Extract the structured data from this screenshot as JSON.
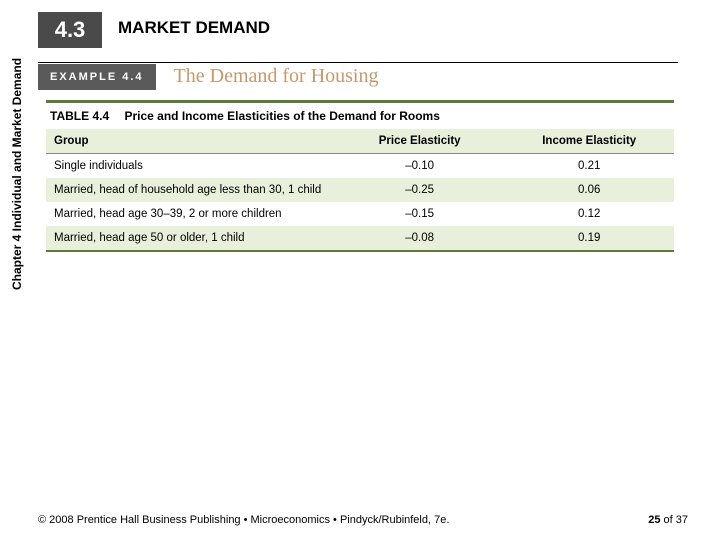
{
  "section": {
    "number": "4.3",
    "title": "MARKET DEMAND"
  },
  "example": {
    "label": "EXAMPLE  4.4",
    "title": "The Demand for Housing"
  },
  "sidebar_label": "Chapter 4  Individual and Market Demand",
  "table": {
    "label": "TABLE 4.4",
    "title": "Price and Income Elasticities of the Demand for Rooms",
    "columns": [
      "Group",
      "Price Elasticity",
      "Income Elasticity"
    ],
    "rows": [
      [
        "Single individuals",
        "–0.10",
        "0.21"
      ],
      [
        "Married, head of household age less than 30, 1 child",
        "–0.25",
        "0.06"
      ],
      [
        "Married, head age 30–39, 2 or more children",
        "–0.15",
        "0.12"
      ],
      [
        "Married, head age 50 or older, 1 child",
        "–0.08",
        "0.19"
      ]
    ],
    "header_bg": "#e8f0dc",
    "zebra_bg": "#e8f0dc",
    "rule_color": "#5a7a3a"
  },
  "footer": {
    "copyright": "© 2008 Prentice Hall Business Publishing  •  Microeconomics  •  Pindyck/Rubinfeld, 7e.",
    "page_current": "25",
    "page_of": "of 37"
  }
}
